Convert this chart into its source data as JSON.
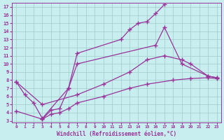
{
  "xlabel": "Windchill (Refroidissement éolien,°C)",
  "background_color": "#c8eef0",
  "line_color": "#993399",
  "xlim": [
    -0.5,
    23.5
  ],
  "ylim": [
    2.8,
    17.5
  ],
  "xticks": [
    0,
    1,
    2,
    3,
    4,
    5,
    6,
    7,
    8,
    9,
    10,
    11,
    12,
    13,
    14,
    15,
    16,
    17,
    18,
    19,
    20,
    21,
    22,
    23
  ],
  "yticks": [
    3,
    4,
    5,
    6,
    7,
    8,
    9,
    10,
    11,
    12,
    13,
    14,
    15,
    16,
    17
  ],
  "curve1_x": [
    3,
    4,
    5,
    6,
    7,
    12,
    13,
    14,
    15,
    16,
    17
  ],
  "curve1_y": [
    3.2,
    4.3,
    4.5,
    7.0,
    11.3,
    13.0,
    14.2,
    15.0,
    15.2,
    16.2,
    17.3
  ],
  "curve2_x": [
    0,
    1,
    2,
    3,
    6,
    7,
    16,
    17,
    19,
    22,
    23
  ],
  "curve2_y": [
    7.8,
    6.2,
    5.2,
    3.3,
    7.0,
    10.0,
    12.3,
    14.5,
    10.0,
    8.5,
    8.3
  ],
  "curve3_x": [
    0,
    3,
    7,
    10,
    13,
    15,
    17,
    19,
    20,
    22,
    23
  ],
  "curve3_y": [
    7.8,
    5.0,
    6.2,
    7.5,
    9.0,
    10.5,
    11.0,
    10.5,
    10.0,
    8.5,
    8.3
  ],
  "curve4_x": [
    0,
    3,
    4,
    5,
    6,
    7,
    10,
    13,
    15,
    18,
    20,
    22,
    23
  ],
  "curve4_y": [
    4.2,
    3.2,
    3.8,
    4.0,
    4.5,
    5.2,
    6.0,
    7.0,
    7.5,
    8.0,
    8.2,
    8.3,
    8.2
  ]
}
